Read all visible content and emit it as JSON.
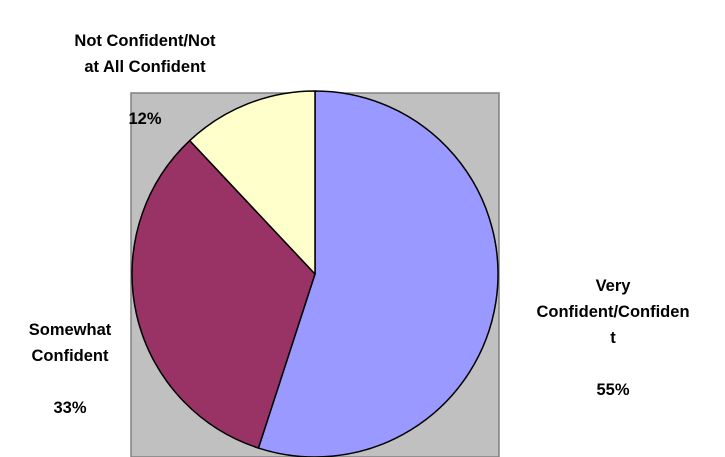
{
  "chart_data": {
    "type": "pie",
    "title": "",
    "plot_area_color": "#c0c0c0",
    "border_color": "#808080",
    "slices": [
      {
        "label": "Very\nConfident/Confiden\nt",
        "percent_label": "55%",
        "value": 55,
        "color": "#9999ff"
      },
      {
        "label": "Somewhat\nConfident",
        "percent_label": "33%",
        "value": 33,
        "color": "#993366"
      },
      {
        "label": "Not Confident/Not\nat All Confident",
        "percent_label": "12%",
        "value": 12,
        "color": "#ffffcc"
      }
    ]
  }
}
